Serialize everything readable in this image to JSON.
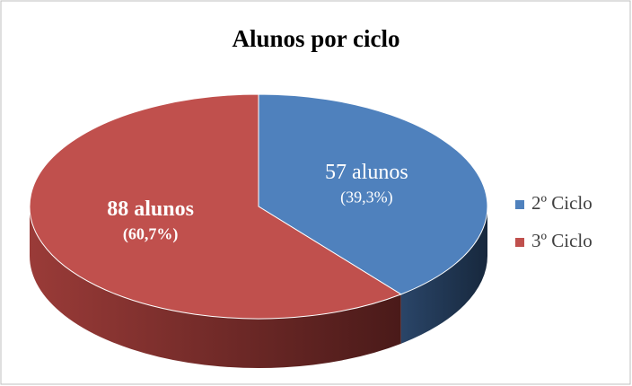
{
  "chart_data": {
    "type": "pie",
    "title": "Alunos por ciclo",
    "categories": [
      "2º Ciclo",
      "3º Ciclo"
    ],
    "values": [
      57,
      88
    ],
    "value_labels": [
      "57 alunos",
      "88 alunos"
    ],
    "percent_labels": [
      "(39,3%)",
      "(60,7%)"
    ],
    "colors": [
      "#4f81bd",
      "#c0504d"
    ],
    "legend": "right"
  }
}
